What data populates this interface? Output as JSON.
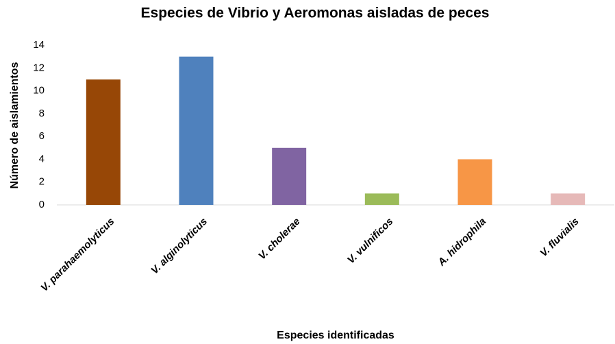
{
  "chart_data": {
    "type": "bar",
    "title": "Especies de Vibrio y Aeromonas aisladas de peces",
    "xlabel": "Especies identificadas",
    "ylabel": "Número de aislamientos",
    "categories": [
      "V. parahaemolyticus",
      "V. alginolyticus",
      "V. cholerae",
      "V. vulnificos",
      "A. hidrophila",
      "V. fluvialis"
    ],
    "values": [
      11,
      13,
      5,
      1,
      4,
      1
    ],
    "colors": [
      "#974706",
      "#4f81bd",
      "#8064a2",
      "#9bbb59",
      "#f79646",
      "#e6b9b8"
    ],
    "ylim": [
      0,
      14
    ],
    "yticks": [
      0,
      2,
      4,
      6,
      8,
      10,
      12,
      14
    ],
    "grid": false
  }
}
